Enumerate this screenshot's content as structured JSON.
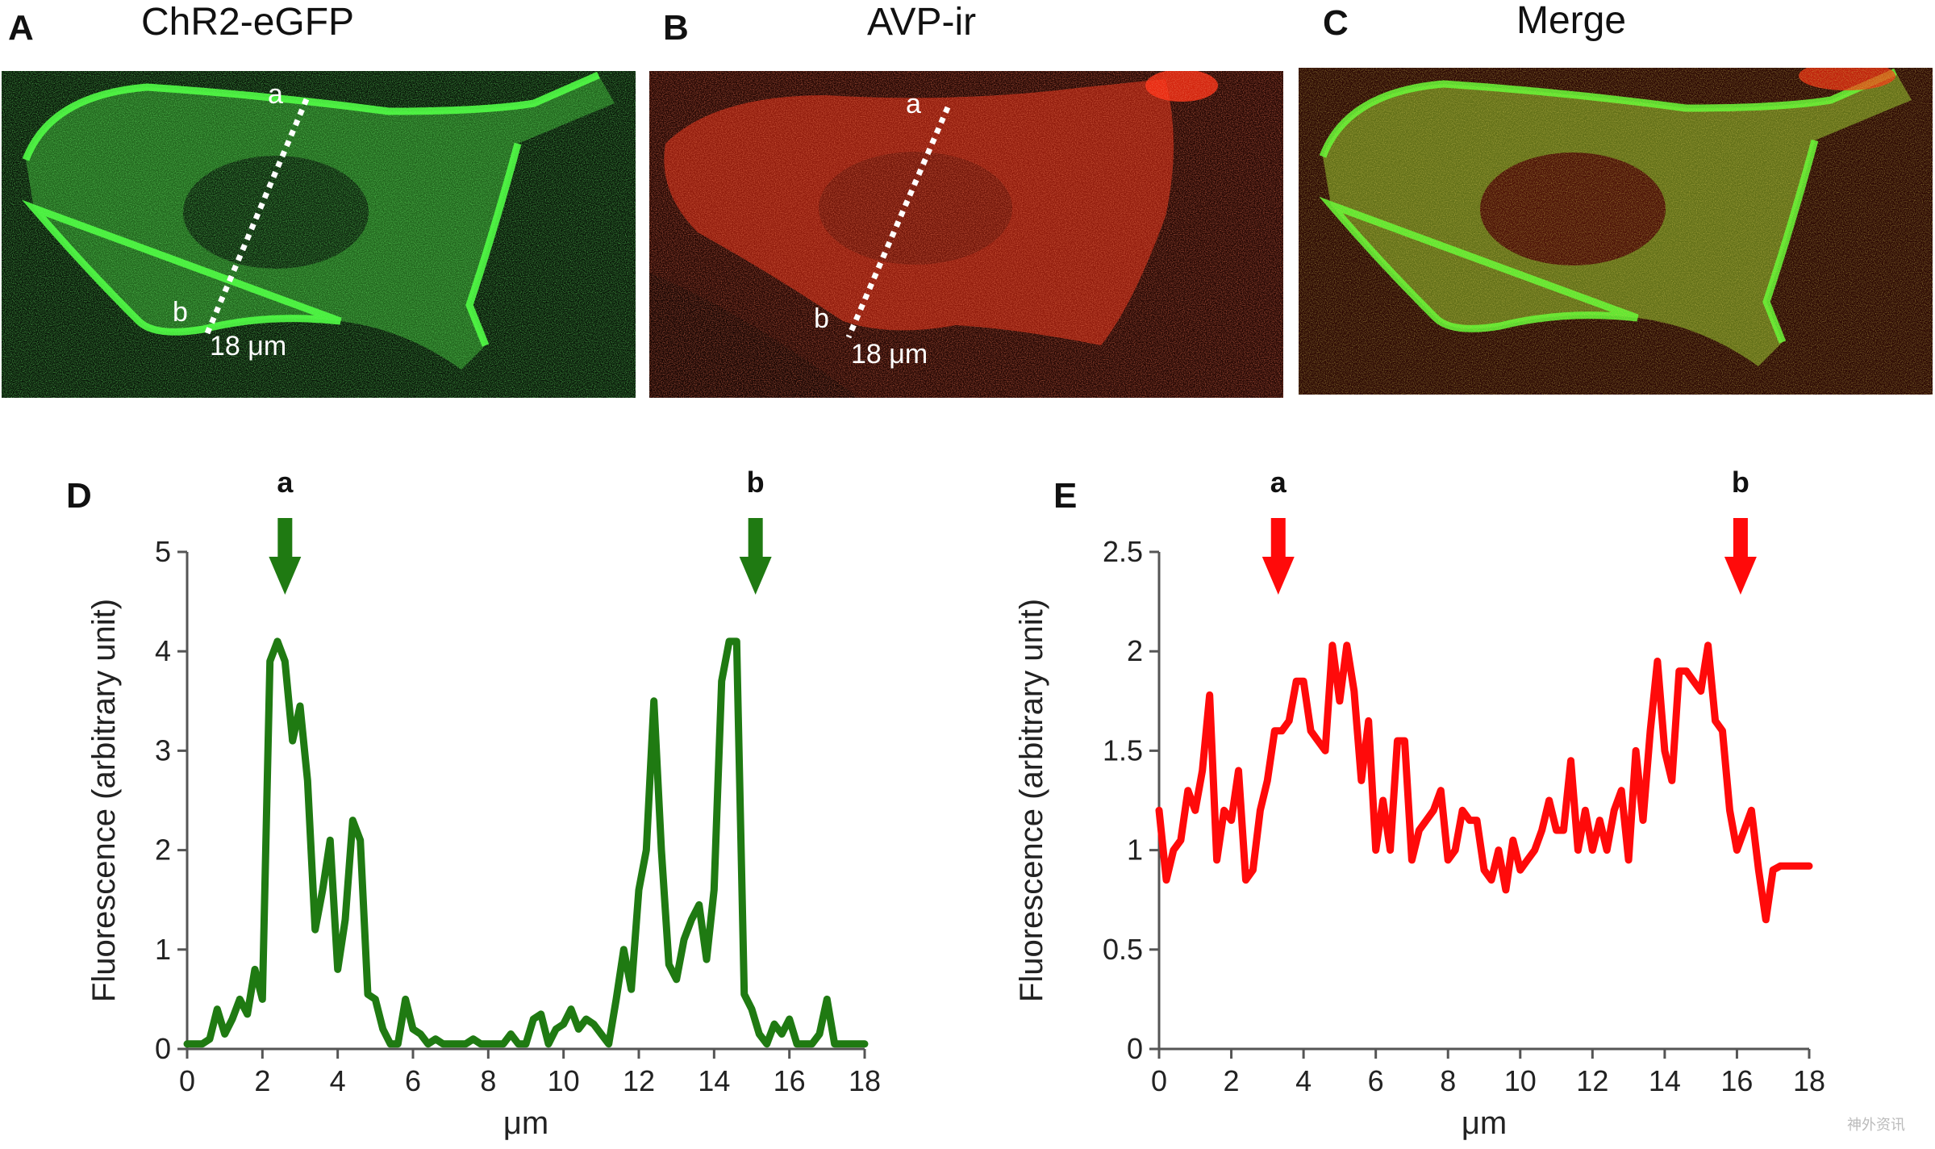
{
  "panels": {
    "A": {
      "letter": "A",
      "title": "ChR2-eGFP",
      "label_a": "a",
      "label_b": "b",
      "scale": "18 μm"
    },
    "B": {
      "letter": "B",
      "title": "AVP-ir",
      "label_a": "a",
      "label_b": "b",
      "scale": "18 μm"
    },
    "C": {
      "letter": "C",
      "title": "Merge"
    },
    "D": {
      "letter": "D"
    },
    "E": {
      "letter": "E"
    }
  },
  "colors": {
    "green": "#1f7a12",
    "red": "#ff0a0a",
    "micro_green": "#3ee23a",
    "micro_red": "#d62a14"
  },
  "watermark": "神外资讯",
  "chart_data": [
    {
      "type": "line",
      "panel": "D",
      "xlabel": "μm",
      "ylabel": "Fluorescence (arbitrary unit)",
      "xlim": [
        0,
        18
      ],
      "ylim": [
        0,
        5
      ],
      "xticks": [
        "0",
        "2",
        "4",
        "6",
        "8",
        "10",
        "12",
        "14",
        "16",
        "18"
      ],
      "yticks": [
        "0",
        "1",
        "2",
        "3",
        "4",
        "5"
      ],
      "arrows": [
        {
          "label": "a",
          "x": 2.6
        },
        {
          "label": "b",
          "x": 15.1
        }
      ],
      "series": [
        {
          "color": "#1f7a12",
          "x": [
            0,
            0.2,
            0.4,
            0.6,
            0.8,
            1.0,
            1.2,
            1.4,
            1.6,
            1.8,
            2.0,
            2.2,
            2.4,
            2.6,
            2.8,
            3.0,
            3.2,
            3.4,
            3.6,
            3.8,
            4.0,
            4.2,
            4.4,
            4.6,
            4.8,
            5.0,
            5.2,
            5.4,
            5.6,
            5.8,
            6.0,
            6.2,
            6.4,
            6.6,
            6.8,
            7.0,
            7.2,
            7.4,
            7.6,
            7.8,
            8.0,
            8.2,
            8.4,
            8.6,
            8.8,
            9.0,
            9.2,
            9.4,
            9.6,
            9.8,
            10.0,
            10.2,
            10.4,
            10.6,
            10.8,
            11.0,
            11.2,
            11.4,
            11.6,
            11.8,
            12.0,
            12.2,
            12.4,
            12.6,
            12.8,
            13.0,
            13.2,
            13.4,
            13.6,
            13.8,
            14.0,
            14.2,
            14.4,
            14.6,
            14.8,
            15.0,
            15.2,
            15.4,
            15.6,
            15.8,
            16.0,
            16.2,
            16.4,
            16.6,
            16.8,
            17.0,
            17.2,
            17.4,
            17.6,
            17.8,
            18.0
          ],
          "y": [
            0.05,
            0.05,
            0.05,
            0.1,
            0.4,
            0.15,
            0.3,
            0.5,
            0.35,
            0.8,
            0.5,
            3.9,
            4.1,
            3.9,
            3.1,
            3.45,
            2.7,
            1.2,
            1.6,
            2.1,
            0.8,
            1.3,
            2.3,
            2.1,
            0.55,
            0.5,
            0.2,
            0.05,
            0.05,
            0.5,
            0.2,
            0.15,
            0.05,
            0.1,
            0.05,
            0.05,
            0.05,
            0.05,
            0.1,
            0.05,
            0.05,
            0.05,
            0.05,
            0.15,
            0.05,
            0.05,
            0.3,
            0.35,
            0.05,
            0.2,
            0.25,
            0.4,
            0.2,
            0.3,
            0.25,
            0.15,
            0.05,
            0.5,
            1.0,
            0.6,
            1.6,
            2.0,
            3.5,
            2.0,
            0.85,
            0.7,
            1.1,
            1.3,
            1.45,
            0.9,
            1.6,
            3.7,
            4.1,
            4.1,
            0.55,
            0.4,
            0.15,
            0.05,
            0.25,
            0.15,
            0.3,
            0.05,
            0.05,
            0.05,
            0.15,
            0.5,
            0.05,
            0.05,
            0.05,
            0.05,
            0.05
          ]
        }
      ]
    },
    {
      "type": "line",
      "panel": "E",
      "xlabel": "μm",
      "ylabel": "Fluorescence (arbitrary unit)",
      "xlim": [
        0,
        18
      ],
      "ylim": [
        0,
        2.5
      ],
      "xticks": [
        "0",
        "2",
        "4",
        "6",
        "8",
        "10",
        "12",
        "14",
        "16",
        "18"
      ],
      "yticks": [
        "0",
        "0.5",
        "1",
        "1.5",
        "2",
        "2.5"
      ],
      "arrows": [
        {
          "label": "a",
          "x": 3.3
        },
        {
          "label": "b",
          "x": 16.1
        }
      ],
      "series": [
        {
          "color": "#ff0a0a",
          "x": [
            0,
            0.2,
            0.4,
            0.6,
            0.8,
            1.0,
            1.2,
            1.4,
            1.6,
            1.8,
            2.0,
            2.2,
            2.4,
            2.6,
            2.8,
            3.0,
            3.2,
            3.4,
            3.6,
            3.8,
            4.0,
            4.2,
            4.4,
            4.6,
            4.8,
            5.0,
            5.2,
            5.4,
            5.6,
            5.8,
            6.0,
            6.2,
            6.4,
            6.6,
            6.8,
            7.0,
            7.2,
            7.4,
            7.6,
            7.8,
            8.0,
            8.2,
            8.4,
            8.6,
            8.8,
            9.0,
            9.2,
            9.4,
            9.6,
            9.8,
            10.0,
            10.2,
            10.4,
            10.6,
            10.8,
            11.0,
            11.2,
            11.4,
            11.6,
            11.8,
            12.0,
            12.2,
            12.4,
            12.6,
            12.8,
            13.0,
            13.2,
            13.4,
            13.6,
            13.8,
            14.0,
            14.2,
            14.4,
            14.6,
            14.8,
            15.0,
            15.2,
            15.4,
            15.6,
            15.8,
            16.0,
            16.2,
            16.4,
            16.6,
            16.8,
            17.0,
            17.2,
            17.4,
            17.6,
            17.8,
            18.0
          ],
          "y": [
            1.2,
            0.85,
            1.0,
            1.05,
            1.3,
            1.2,
            1.4,
            1.78,
            0.95,
            1.2,
            1.15,
            1.4,
            0.85,
            0.9,
            1.2,
            1.35,
            1.6,
            1.6,
            1.65,
            1.85,
            1.85,
            1.6,
            1.55,
            1.5,
            2.03,
            1.75,
            2.03,
            1.8,
            1.35,
            1.65,
            1.0,
            1.25,
            1.0,
            1.55,
            1.55,
            0.95,
            1.1,
            1.15,
            1.2,
            1.3,
            0.95,
            1.0,
            1.2,
            1.15,
            1.15,
            0.9,
            0.85,
            1.0,
            0.8,
            1.05,
            0.9,
            0.95,
            1.0,
            1.1,
            1.25,
            1.1,
            1.1,
            1.45,
            1.0,
            1.2,
            1.0,
            1.15,
            1.0,
            1.2,
            1.3,
            0.95,
            1.5,
            1.15,
            1.6,
            1.95,
            1.5,
            1.35,
            1.9,
            1.9,
            1.85,
            1.8,
            2.03,
            1.65,
            1.6,
            1.2,
            1.0,
            1.1,
            1.2,
            0.9,
            0.65,
            0.9,
            0.92,
            0.92,
            0.92,
            0.92,
            0.92
          ]
        }
      ]
    }
  ]
}
